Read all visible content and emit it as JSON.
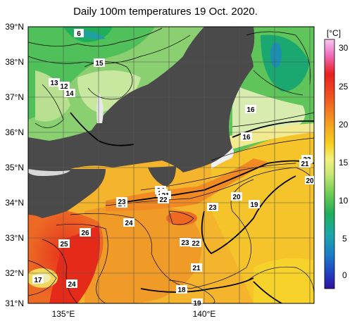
{
  "title": "Daily 100m temperatures 19 Oct. 2020.",
  "colorbar": {
    "unit": "[°C]",
    "ticks": [
      "30",
      "25",
      "20",
      "15",
      "10",
      "5",
      "0"
    ]
  },
  "axes": {
    "lat_labels": [
      "39°N",
      "38°N",
      "37°N",
      "36°N",
      "35°N",
      "34°N",
      "33°N",
      "32°N",
      "31°N"
    ],
    "lon_labels": [
      "135°E",
      "140°E"
    ]
  },
  "contour_labels": [
    "6",
    "15",
    "13",
    "12",
    "14",
    "16",
    "16",
    "22",
    "21",
    "20",
    "20",
    "19",
    "24",
    "23",
    "21",
    "22",
    "23",
    "24",
    "23",
    "24",
    "26",
    "25",
    "23",
    "22",
    "21",
    "17",
    "24",
    "18",
    "19"
  ],
  "colors": {
    "land": "#4a4a4a",
    "coast_white": "#f4f4f4",
    "cold_green": "#3fb94a",
    "cool_green": "#8fd070",
    "pale": "#e8f0c0",
    "warm_yellow": "#f3c52a",
    "warm_orange": "#f0a22a",
    "hot_orange": "#ec6e24",
    "hot_red": "#e8361e"
  }
}
